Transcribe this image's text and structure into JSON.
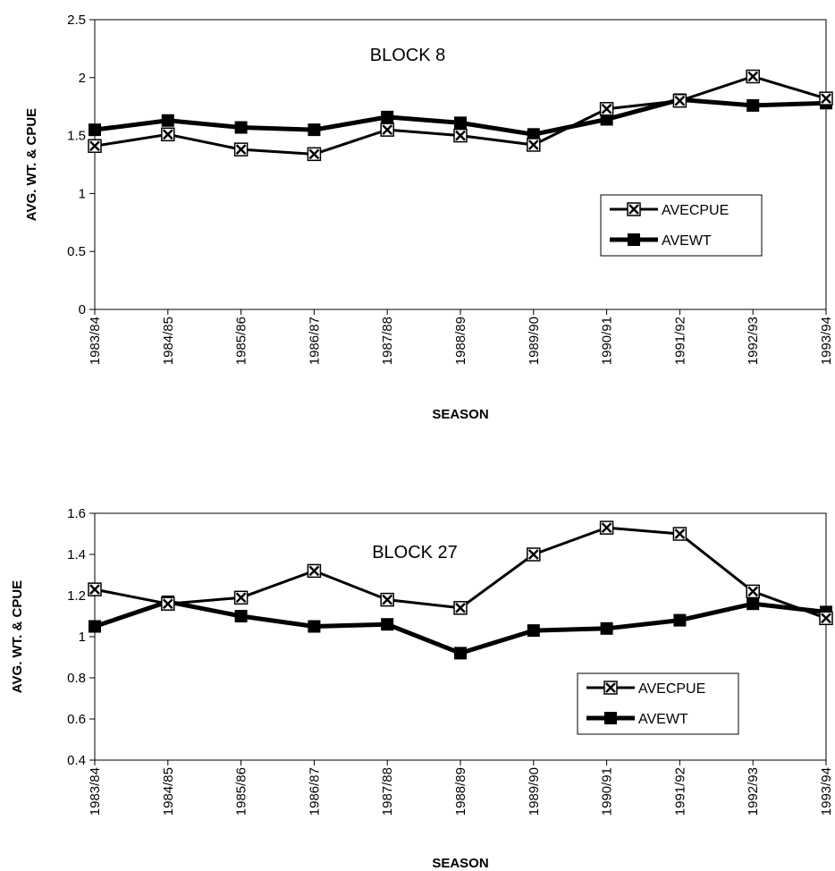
{
  "chart_data": [
    {
      "type": "line",
      "title": "BLOCK 8",
      "xlabel": "SEASON",
      "ylabel": "AVG. WT. & CPUE",
      "categories": [
        "1983/84",
        "1984/85",
        "1985/86",
        "1986/87",
        "1987/88",
        "1988/89",
        "1989/90",
        "1990/91",
        "1991/92",
        "1992/93",
        "1993/94"
      ],
      "ylim": [
        0,
        2.5
      ],
      "yticks": [
        "0",
        "0.5",
        "1",
        "1.5",
        "2",
        "2.5"
      ],
      "grid": false,
      "legend_position": "right",
      "series": [
        {
          "name": "AVECPUE",
          "values": [
            1.41,
            1.51,
            1.38,
            1.34,
            1.55,
            1.5,
            1.42,
            1.73,
            1.8,
            2.01,
            1.82
          ],
          "marker": "x-square",
          "color": "#000000"
        },
        {
          "name": "AVEWT",
          "values": [
            1.55,
            1.63,
            1.57,
            1.55,
            1.66,
            1.61,
            1.51,
            1.64,
            1.81,
            1.76,
            1.78
          ],
          "marker": "square",
          "color": "#000000"
        }
      ]
    },
    {
      "type": "line",
      "title": "BLOCK 27",
      "xlabel": "SEASON",
      "ylabel": "AVG. WT. & CPUE",
      "categories": [
        "1983/84",
        "1984/85",
        "1985/86",
        "1986/87",
        "1987/88",
        "1988/89",
        "1989/90",
        "1990/91",
        "1991/92",
        "1992/93",
        "1993/94"
      ],
      "ylim": [
        0.4,
        1.6
      ],
      "yticks": [
        "0.4",
        "0.6",
        "0.8",
        "1",
        "1.2",
        "1.4",
        "1.6"
      ],
      "grid": false,
      "legend_position": "bottom-right",
      "series": [
        {
          "name": "AVECPUE",
          "values": [
            1.23,
            1.16,
            1.19,
            1.32,
            1.18,
            1.14,
            1.4,
            1.53,
            1.5,
            1.22,
            1.09
          ],
          "marker": "x-square",
          "color": "#000000"
        },
        {
          "name": "AVEWT",
          "values": [
            1.05,
            1.17,
            1.1,
            1.05,
            1.06,
            0.92,
            1.03,
            1.04,
            1.08,
            1.16,
            1.12
          ],
          "marker": "square",
          "color": "#000000"
        }
      ]
    }
  ]
}
